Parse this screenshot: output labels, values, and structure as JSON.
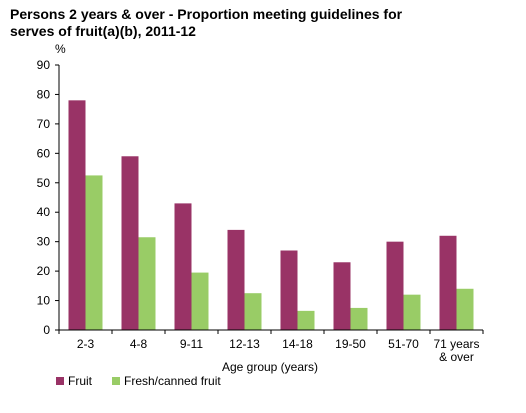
{
  "chart_data": {
    "type": "bar",
    "title": "Persons 2 years & over - Proportion meeting guidelines for\nserves of fruit(a)(b),  2011-12",
    "ylabel": "%",
    "xlabel": "Age group (years)",
    "ylim": [
      0,
      90
    ],
    "yticks": [
      0,
      10,
      20,
      30,
      40,
      50,
      60,
      70,
      80,
      90
    ],
    "categories": [
      "2-3",
      "4-8",
      "9-11",
      "12-13",
      "14-18",
      "19-50",
      "51-70",
      "71 years\n& over"
    ],
    "series": [
      {
        "name": "Fruit",
        "color": "#993366",
        "values": [
          78,
          59,
          43,
          34,
          27,
          23,
          30,
          32
        ]
      },
      {
        "name": "Fresh/canned fruit",
        "color": "#99CC66",
        "values": [
          52.5,
          31.5,
          19.5,
          12.5,
          6.5,
          7.5,
          12,
          14
        ]
      }
    ],
    "grid": false,
    "legend_position": "bottom-left"
  }
}
